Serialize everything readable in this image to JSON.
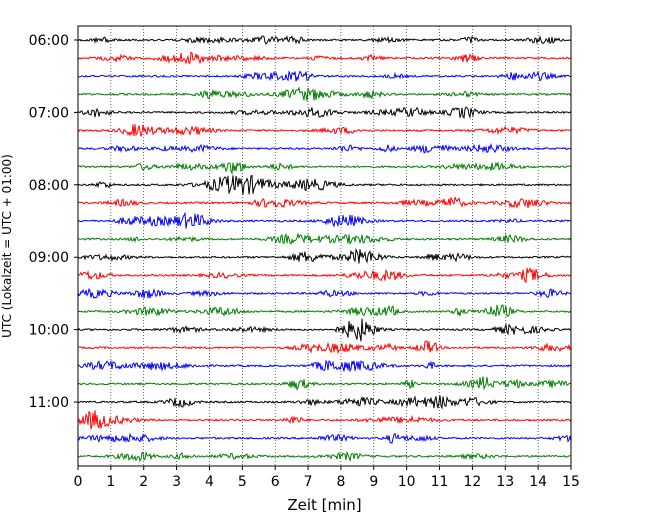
{
  "chart_data": {
    "type": "line",
    "xlabel": "Zeit  [min]",
    "ylabel": "UTC (Lokalzeit = UTC + 01:00)",
    "xlim": [
      0,
      15
    ],
    "x_ticks": [
      0,
      1,
      2,
      3,
      4,
      5,
      6,
      7,
      8,
      9,
      10,
      11,
      12,
      13,
      14,
      15
    ],
    "x_tick_labels": [
      "0",
      "1",
      "2",
      "3",
      "4",
      "5",
      "6",
      "7",
      "8",
      "9",
      "10",
      "11",
      "12",
      "13",
      "14",
      "15"
    ],
    "y_tick_labels": [
      {
        "label": "06:00",
        "trace_index": 0
      },
      {
        "label": "07:00",
        "trace_index": 4
      },
      {
        "label": "08:00",
        "trace_index": 8
      },
      {
        "label": "09:00",
        "trace_index": 12
      },
      {
        "label": "10:00",
        "trace_index": 16
      },
      {
        "label": "11:00",
        "trace_index": 20
      }
    ],
    "vertical_grid": true,
    "grid_style": "dotted",
    "trace_colors": [
      "#000000",
      "#ff0000",
      "#0000ff",
      "#008000"
    ],
    "traces": [
      {
        "start": "06:00"
      },
      {
        "start": "06:15"
      },
      {
        "start": "06:30"
      },
      {
        "start": "06:45"
      },
      {
        "start": "07:00"
      },
      {
        "start": "07:15"
      },
      {
        "start": "07:30"
      },
      {
        "start": "07:45"
      },
      {
        "start": "08:00"
      },
      {
        "start": "08:15"
      },
      {
        "start": "08:30"
      },
      {
        "start": "08:45"
      },
      {
        "start": "09:00"
      },
      {
        "start": "09:15"
      },
      {
        "start": "09:30"
      },
      {
        "start": "09:45"
      },
      {
        "start": "10:00"
      },
      {
        "start": "10:15"
      },
      {
        "start": "10:30"
      },
      {
        "start": "10:45"
      },
      {
        "start": "11:00"
      },
      {
        "start": "11:15"
      },
      {
        "start": "11:30"
      },
      {
        "start": "11:45"
      }
    ]
  }
}
